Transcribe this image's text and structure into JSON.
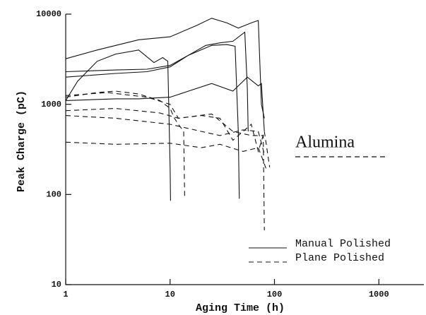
{
  "chart_data": {
    "type": "line",
    "x_label": "Aging Time (h)",
    "y_label": "Peak Charge (pC)",
    "log_x": true,
    "log_y": true,
    "xlim": [
      1,
      2700
    ],
    "ylim": [
      10,
      10000
    ],
    "xticks": [
      1,
      10,
      100,
      1000
    ],
    "yticks": [
      10,
      100,
      1000,
      10000
    ],
    "annotation": "Alumina",
    "color": "#111111",
    "groups": [
      {
        "name": "Manual Polished",
        "dash": "solid",
        "lines": [
          {
            "x": [
              1,
              2,
              5,
              10,
              18,
              25,
              35,
              45,
              60,
              70,
              75,
              80
            ],
            "values": [
              3200,
              4000,
              5200,
              5600,
              7500,
              9000,
              8000,
              7000,
              8000,
              8500,
              1000,
              700
            ]
          },
          {
            "x": [
              1,
              1.3,
              2,
              3,
              5,
              7,
              8.5,
              9.5,
              10,
              10.1
            ],
            "values": [
              1100,
              1800,
              3000,
              3600,
              4000,
              2900,
              3300,
              3000,
              200,
              85
            ]
          },
          {
            "x": [
              1,
              3,
              6,
              10,
              15,
              22,
              30,
              40,
              52,
              55,
              56
            ],
            "values": [
              2000,
              2200,
              2300,
              2600,
              3500,
              4500,
              4800,
              5000,
              6300,
              1500,
              500
            ]
          },
          {
            "x": [
              1,
              3,
              6,
              10,
              15,
              25,
              35,
              42,
              45,
              46
            ],
            "values": [
              2300,
              2400,
              2450,
              2700,
              3500,
              4500,
              4600,
              4400,
              500,
              90
            ]
          },
          {
            "x": [
              1,
              3,
              5,
              10,
              15,
              25,
              40,
              55,
              70,
              75,
              80
            ],
            "values": [
              1100,
              1150,
              1150,
              1200,
              1400,
              1700,
              1400,
              2000,
              1600,
              1700,
              500
            ]
          }
        ]
      },
      {
        "name": "Plane Polished",
        "dash": "dashed",
        "lines": [
          {
            "x": [
              1,
              2,
              3,
              5,
              8,
              10,
              11,
              12,
              13.5,
              13.8
            ],
            "values": [
              1200,
              1350,
              1400,
              1300,
              1100,
              900,
              700,
              600,
              500,
              90
            ]
          },
          {
            "x": [
              1,
              2.5,
              6,
              10,
              12,
              20,
              30,
              40,
              60,
              70,
              80,
              90
            ],
            "values": [
              1250,
              1350,
              1200,
              1000,
              700,
              750,
              700,
              400,
              600,
              300,
              500,
              200
            ]
          },
          {
            "x": [
              1,
              3,
              8,
              12,
              25,
              40,
              60,
              78,
              80
            ],
            "values": [
              850,
              900,
              800,
              700,
              780,
              500,
              450,
              450,
              40
            ]
          },
          {
            "x": [
              1,
              3,
              10,
              20,
              30,
              50,
              70,
              80
            ],
            "values": [
              750,
              700,
              600,
              500,
              450,
              520,
              500,
              280
            ]
          },
          {
            "x": [
              1,
              3,
              10,
              20,
              30,
              50,
              70,
              85
            ],
            "values": [
              380,
              360,
              370,
              330,
              360,
              300,
              330,
              180
            ]
          }
        ]
      }
    ]
  }
}
